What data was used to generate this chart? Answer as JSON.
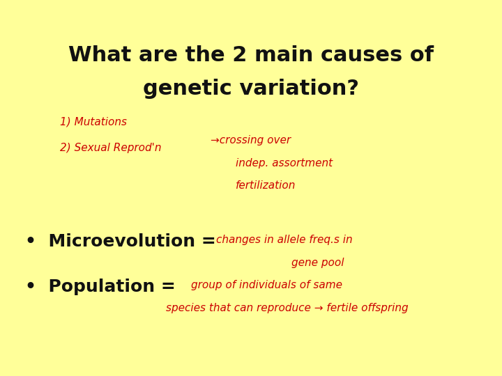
{
  "background_color": "#FFFF99",
  "title_line1": "What are the 2 main causes of",
  "title_line2": "genetic variation?",
  "title_fontsize": 22,
  "title_color": "#111111",
  "handwritten_color": "#CC0000",
  "bullet_color": "#111111",
  "bullet_fontsize": 18,
  "hw_fontsize": 11,
  "hw_line1": "1) Mutations",
  "hw_line2": "2) Sexual Reprod'n→crossing over",
  "hw_line3": "indep. assortment",
  "hw_line4": "fertilization",
  "hw_micro1": "changes in allele freq.s in",
  "hw_micro2": "gene pool",
  "hw_pop1": "group of individuals of same",
  "hw_pop2": "species that can reproduce → fertile offspring"
}
